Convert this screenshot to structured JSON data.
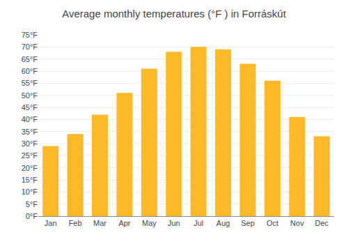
{
  "chart_data": {
    "type": "bar",
    "title": "Average monthly temperatures (°F ) in Forráskút",
    "categories": [
      "Jan",
      "Feb",
      "Mar",
      "Apr",
      "May",
      "Jun",
      "Jul",
      "Aug",
      "Sep",
      "Oct",
      "Nov",
      "Dec"
    ],
    "values": [
      29,
      34,
      42,
      51,
      61,
      68,
      70,
      69,
      63,
      56,
      41,
      33
    ],
    "color": "#FDB927",
    "ylim": [
      0,
      75
    ],
    "yticks": [
      {
        "value": 0,
        "label": "0°F"
      },
      {
        "value": 5,
        "label": "5°F"
      },
      {
        "value": 10,
        "label": "10°F"
      },
      {
        "value": 15,
        "label": "15°F"
      },
      {
        "value": 20,
        "label": "20°F"
      },
      {
        "value": 25,
        "label": "25°F"
      },
      {
        "value": 30,
        "label": "30°F"
      },
      {
        "value": 35,
        "label": "35°F"
      },
      {
        "value": 40,
        "label": "40°F"
      },
      {
        "value": 45,
        "label": "45°F"
      },
      {
        "value": 50,
        "label": "50°F"
      },
      {
        "value": 55,
        "label": "55°F"
      },
      {
        "value": 60,
        "label": "60°F"
      },
      {
        "value": 65,
        "label": "65°F"
      },
      {
        "value": 70,
        "label": "70°F"
      },
      {
        "value": 75,
        "label": "75°F"
      }
    ],
    "grid": true
  }
}
